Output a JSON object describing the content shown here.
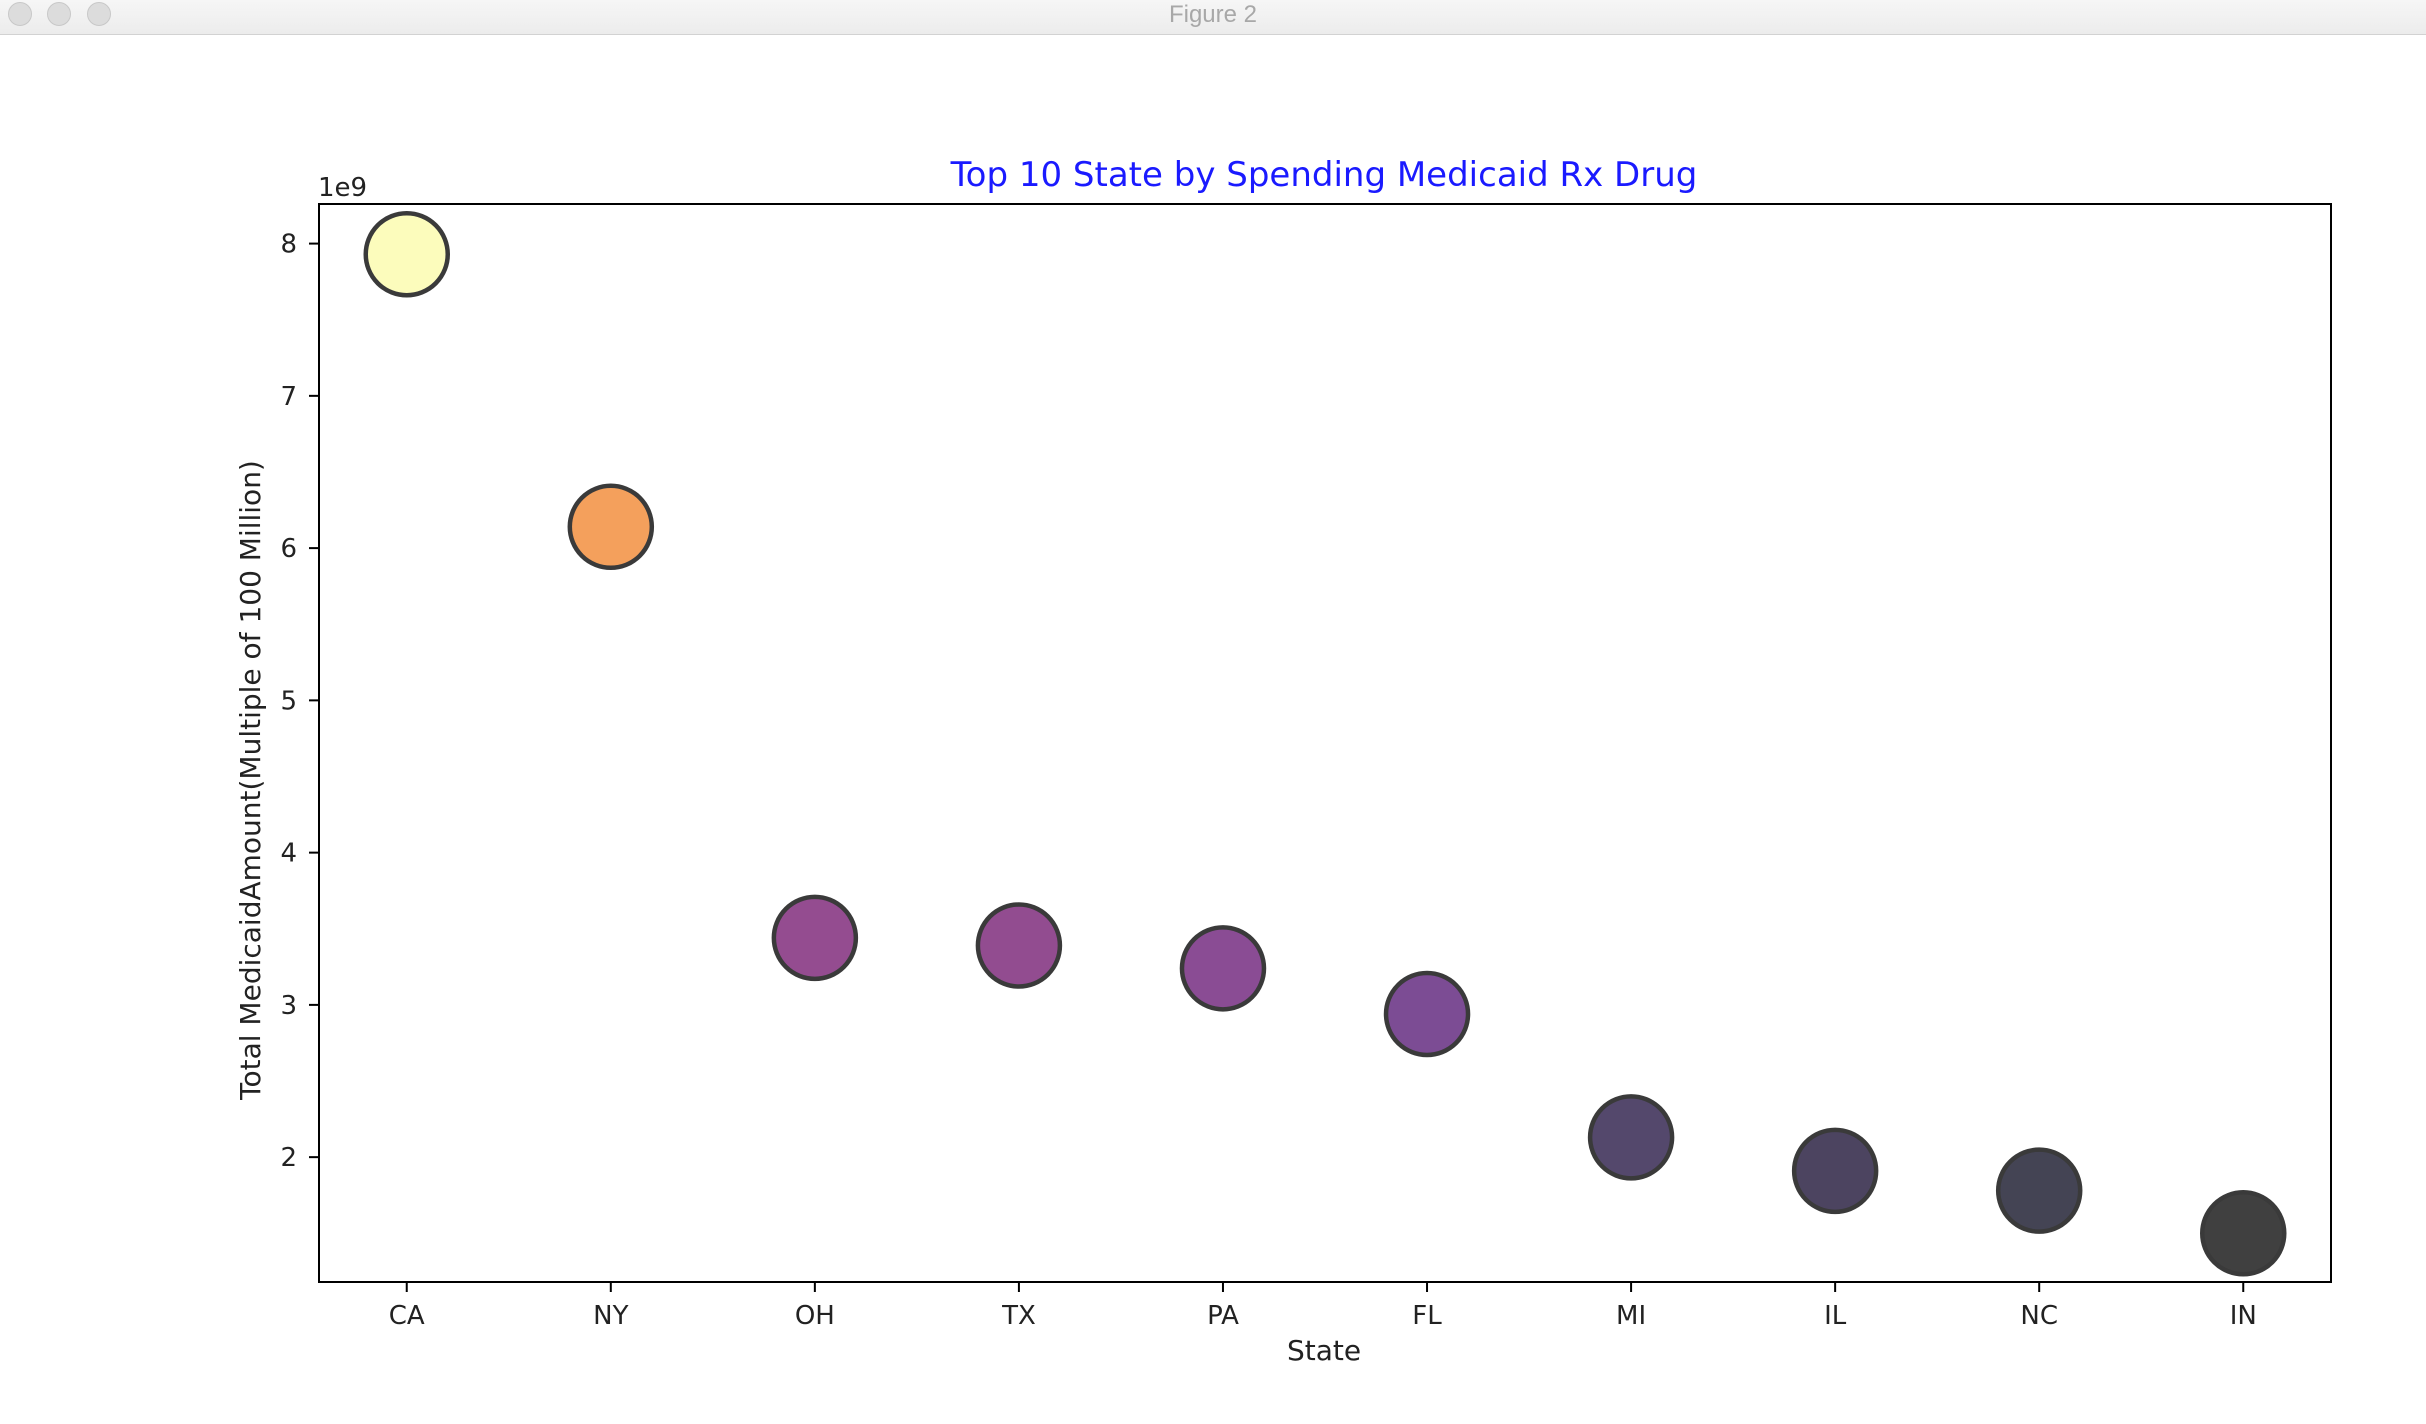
{
  "window": {
    "title": "Figure 2"
  },
  "icons": {
    "close": "close-traffic-light",
    "minimize": "minimize-traffic-light",
    "zoom": "zoom-traffic-light"
  },
  "chart_data": {
    "type": "scatter",
    "title": "Top 10 State by Spending Medicaid Rx Drug",
    "title_color": "#1a1aff",
    "xlabel": "State",
    "ylabel": "Total MedicaidAmount(Multiple of 100 Million)",
    "y_offset_label": "1e9",
    "categories": [
      "CA",
      "NY",
      "OH",
      "TX",
      "PA",
      "FL",
      "MI",
      "IL",
      "NC",
      "IN"
    ],
    "values": [
      7.93,
      6.14,
      3.44,
      3.39,
      3.24,
      2.94,
      2.13,
      1.91,
      1.78,
      1.5
    ],
    "yticks": [
      2,
      3,
      4,
      5,
      6,
      7,
      8
    ],
    "ylim": [
      1.18,
      8.26
    ],
    "grid": false,
    "marker_colors": [
      "#fcfcbc",
      "#f4a05c",
      "#944c90",
      "#924c90",
      "#8a4c94",
      "#7c4c94",
      "#54486c",
      "#4c4460",
      "#444454",
      "#404040"
    ],
    "marker_edge_color": "#3a3a3a"
  }
}
